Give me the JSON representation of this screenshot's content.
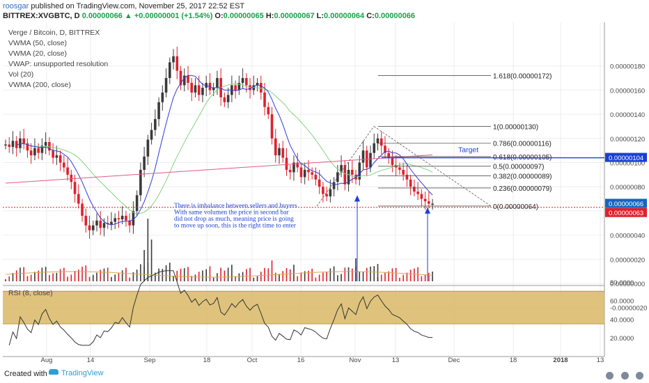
{
  "header": {
    "user": "roosgar",
    "published": "published on TradingView.com, November 25, 2017 22:52 EST",
    "symbol": "BITTREX:XVGBTC, D",
    "last": "0.00000066",
    "change": "▲ +0.00000001 (+1.54%)",
    "o_label": "O:",
    "o_val": "0.00000065",
    "h_label": "H:",
    "h_val": "0.00000067",
    "l_label": "L:",
    "l_val": "0.00000064",
    "c_label": "C:",
    "c_val": "0.00000066"
  },
  "legend": [
    "Verge / Bitcoin, D, BITTREX",
    "VWMA (50, close)",
    "VWMA (20, close)",
    "VWAP: unsupported resolution",
    "Vol (20)",
    "VWMA (200, close)"
  ],
  "rsi_label": "RSI (8, close)",
  "footer": {
    "created_with": "Created with",
    "brand": "TradingView"
  },
  "colors": {
    "up": "#3a3a3a",
    "down": "#e0202c",
    "vwma20": "#2e3bd6",
    "vwma50": "#7fd47f",
    "vwma200": "#e05a8a",
    "target": "#1a3fd8",
    "rsi_band": "#d9b965",
    "grid": "#eeeeee"
  },
  "chart_data": {
    "type": "candlestick",
    "price_axis": {
      "ticks": [
        "0.00000180",
        "0.00000160",
        "0.00000140",
        "0.00000120",
        "0.00000100",
        "0.00000080",
        "0.00000060",
        "0.00000040",
        "0.00000020",
        "0.00000000",
        "-0.00000020"
      ],
      "values": [
        180,
        160,
        140,
        120,
        100,
        80,
        60,
        40,
        20,
        0,
        -20
      ]
    },
    "x_axis": {
      "labels": [
        "Aug",
        "14",
        "Sep",
        "18",
        "Oct",
        "16",
        "Nov",
        "13",
        "Dec",
        "18",
        "2018",
        "13"
      ]
    },
    "rsi_axis": {
      "ticks": [
        "80.0000",
        "60.0000",
        "40.0000",
        "20.0000"
      ],
      "values": [
        80,
        60,
        40,
        20
      ],
      "band": [
        35,
        70
      ]
    },
    "last_price_label": "0.00000066",
    "red_line_label": "0.00000063",
    "target_label": "0.00000104",
    "target_text": "Target",
    "fib_levels": [
      {
        "label": "1.618(0.00000172)",
        "value": 172
      },
      {
        "label": "1(0.00000130)",
        "value": 130
      },
      {
        "label": "0.786(0.00000116)",
        "value": 116
      },
      {
        "label": "0.618(0.00000105)",
        "value": 105
      },
      {
        "label": "0.5(0.00000097)",
        "value": 97
      },
      {
        "label": "0.382(0.00000089)",
        "value": 89
      },
      {
        "label": "0.236(0.00000079)",
        "value": 79
      },
      {
        "label": "0(0.00000064)",
        "value": 64
      }
    ],
    "annotation": [
      "There is imbalance between sellers and buyers",
      "With same volumen the price in second bar",
      "did not drop as much, meaning price is going",
      "to move up soon, this is the right time to enter"
    ],
    "closes": [
      115,
      113,
      118,
      112,
      120,
      116,
      110,
      106,
      112,
      108,
      114,
      117,
      110,
      104,
      106,
      100,
      96,
      90,
      84,
      74,
      66,
      56,
      48,
      44,
      48,
      52,
      46,
      50,
      49,
      51,
      54,
      53,
      56,
      52,
      48,
      60,
      73,
      94,
      105,
      119,
      127,
      136,
      150,
      158,
      170,
      183,
      188,
      176,
      164,
      172,
      166,
      158,
      164,
      156,
      162,
      166,
      160,
      162,
      170,
      154,
      150,
      156,
      164,
      160,
      166,
      170,
      164,
      160,
      164,
      166,
      158,
      146,
      140,
      120,
      106,
      112,
      104,
      94,
      92,
      100,
      96,
      88,
      94,
      92,
      90,
      86,
      80,
      74,
      72,
      78,
      84,
      92,
      98,
      82,
      94,
      90,
      86,
      100,
      110,
      96,
      108,
      116,
      120,
      114,
      108,
      104,
      98,
      96,
      94,
      90,
      86,
      80,
      76,
      74,
      70,
      68,
      66,
      66
    ]
  }
}
